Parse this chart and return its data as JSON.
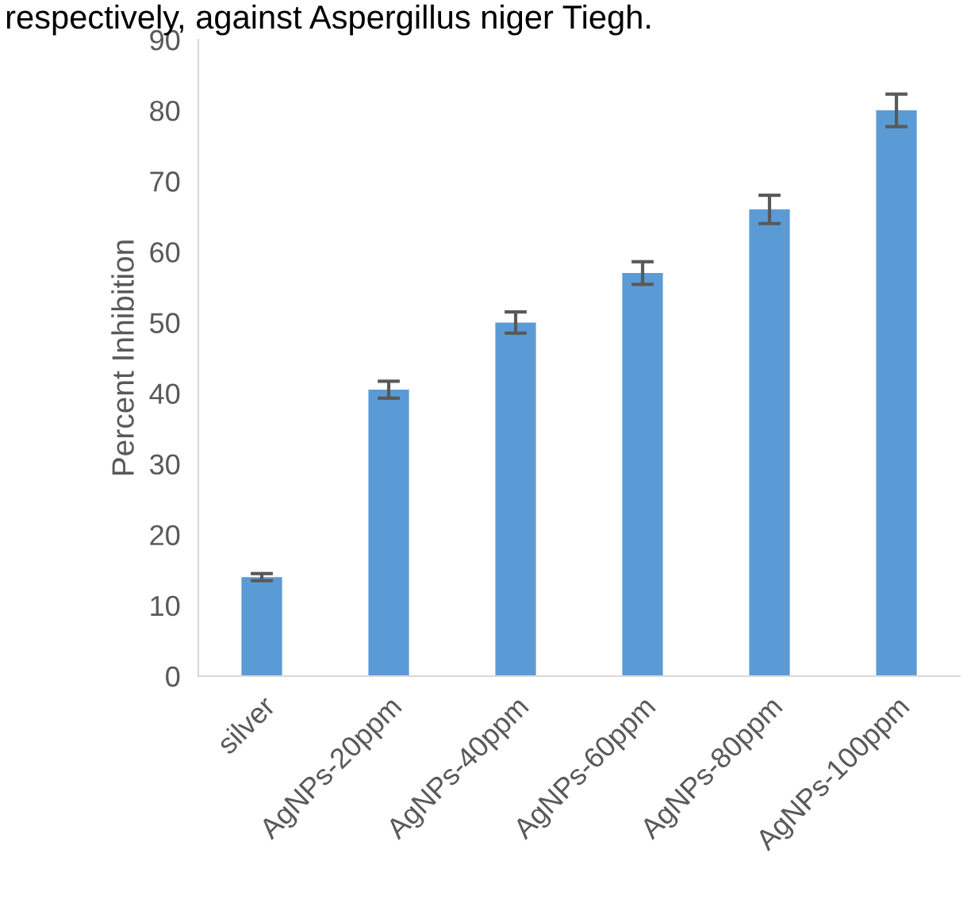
{
  "chart_data": {
    "type": "bar",
    "ylabel": "Percent Inhibition",
    "annotations": [
      "respectively, against Aspergillus niger Tiegh."
    ],
    "categories": [
      "silver",
      "AgNPs-20ppm",
      "AgNPs-40ppm",
      "AgNPs-60ppm",
      "AgNPs-80ppm",
      "AgNPs-100ppm"
    ],
    "values": [
      14,
      40.5,
      50,
      57,
      66,
      80
    ],
    "errors": [
      0.5,
      1.2,
      1.5,
      1.6,
      2,
      2.3
    ],
    "color": "#5b9bd5",
    "ylim": [
      0,
      90
    ],
    "yticks": [
      0,
      10,
      20,
      30,
      40,
      50,
      60,
      70,
      80,
      90
    ],
    "grid": false,
    "legend": false
  }
}
